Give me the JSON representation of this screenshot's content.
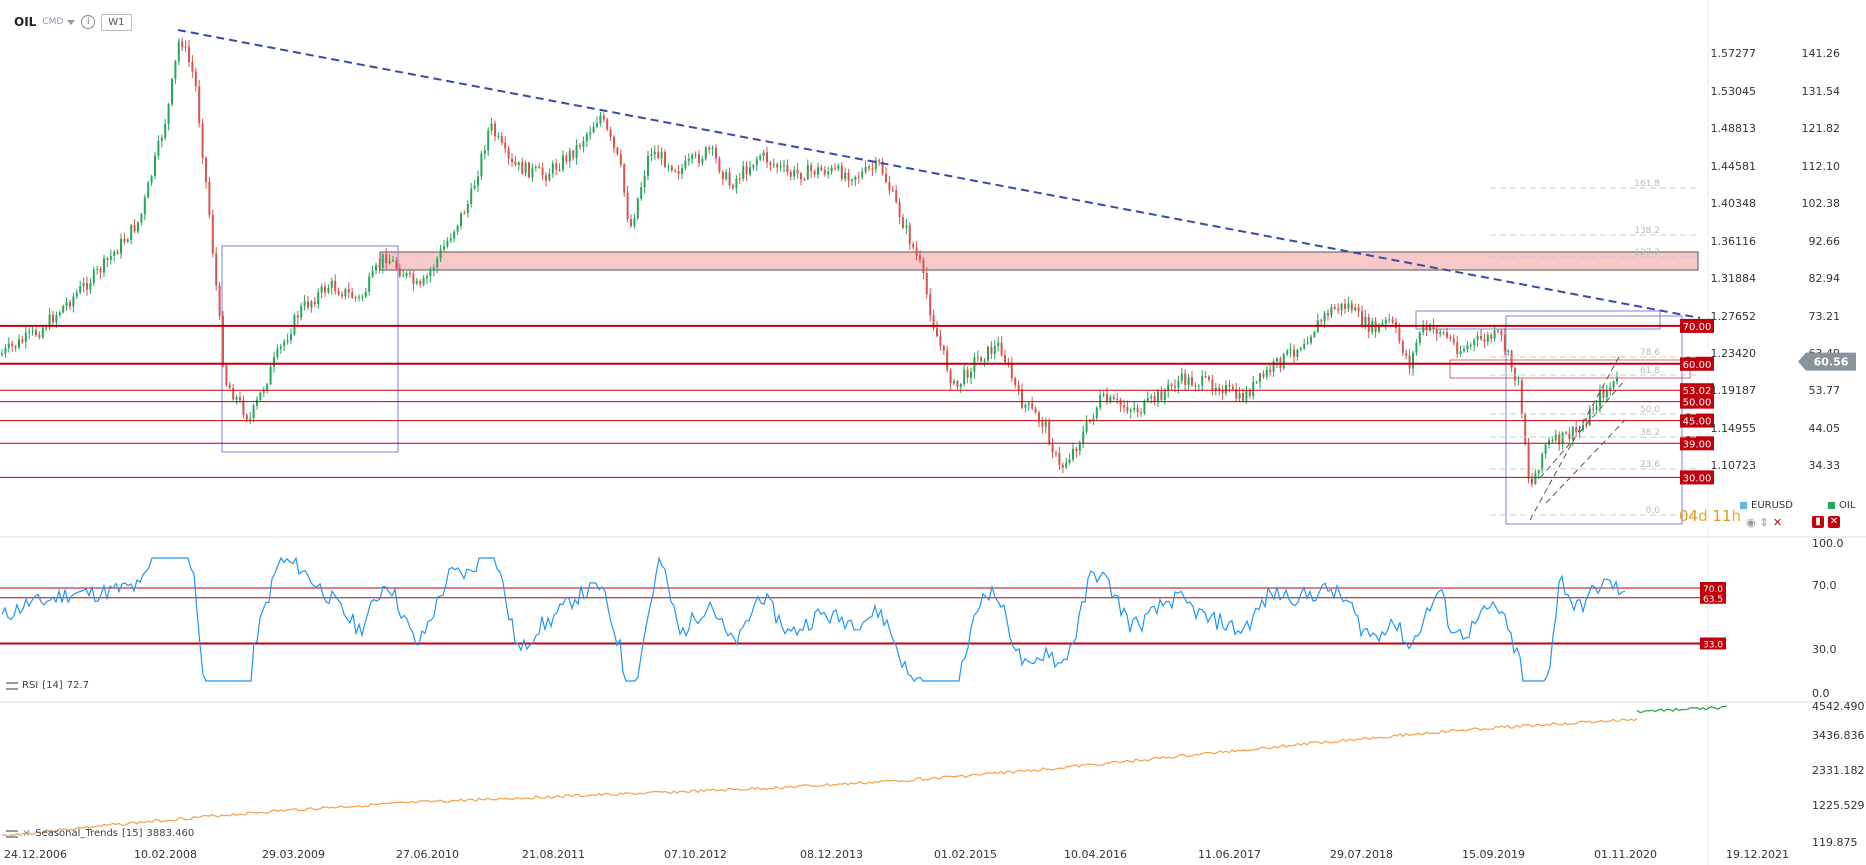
{
  "instrument": {
    "symbol": "OIL",
    "type": "CMD",
    "timeframe": "W1"
  },
  "price_axis": [
    "1.57277",
    "1.53045",
    "1.48813",
    "1.44581",
    "1.40348",
    "1.36116",
    "1.31884",
    "1.27652",
    "1.23420",
    "1.19187",
    "1.14955",
    "1.10723"
  ],
  "oil_axis": [
    "141.26",
    "131.54",
    "121.82",
    "112.10",
    "102.38",
    "92.66",
    "82.94",
    "73.21",
    "63.49",
    "53.77",
    "44.05",
    "34.33"
  ],
  "current_price": "60.56",
  "levels": [
    {
      "label": "70.00",
      "value": 70
    },
    {
      "label": "60.00",
      "value": 60
    },
    {
      "label": "53.02",
      "value": 53.02
    },
    {
      "label": "50.00",
      "value": 50
    },
    {
      "label": "45.00",
      "value": 45
    },
    {
      "label": "39.00",
      "value": 39
    },
    {
      "label": "30.00",
      "value": 30
    }
  ],
  "fib_labels": [
    "161.8",
    "138.2",
    "127.2",
    "78.6",
    "61.8",
    "50.0",
    "38.2",
    "23.6",
    "0.0"
  ],
  "legend": {
    "eurusd": "EURUSD",
    "oil": "OIL"
  },
  "countdown": {
    "days": "04",
    "d": "d",
    "hours": "11",
    "h": "h"
  },
  "rsi": {
    "label": "RSI",
    "param": "[14]",
    "value": "72.7",
    "axis": [
      "100.0",
      "70.0",
      "30.0",
      "0.0"
    ],
    "levels": [
      {
        "label": "70.0",
        "value": 70
      },
      {
        "label": "63.5",
        "value": 63.5
      },
      {
        "label": "33.0",
        "value": 33
      }
    ]
  },
  "seasonal": {
    "label": "Seasonal_Trends",
    "param": "[15]",
    "value": "3883.460",
    "axis": [
      "4542.490",
      "3436.836",
      "2331.182",
      "1225.529",
      "119.875"
    ]
  },
  "dates": [
    "24.12.2006",
    "10.02.2008",
    "29.03.2009",
    "27.06.2010",
    "21.08.2011",
    "07.10.2012",
    "08.12.2013",
    "01.02.2015",
    "10.04.2016",
    "11.06.2017",
    "29.07.2018",
    "15.09.2019",
    "01.11.2020",
    "19.12.2021"
  ],
  "colors": {
    "up": "#26a65b",
    "down": "#d9534f",
    "level": "#c0000b",
    "zone": "#f7c9c9",
    "trend": "#3a4aa8",
    "rsi": "#2196f3",
    "seasonal_past": "#f5a04a",
    "seasonal_future": "#2e9d3a"
  }
}
